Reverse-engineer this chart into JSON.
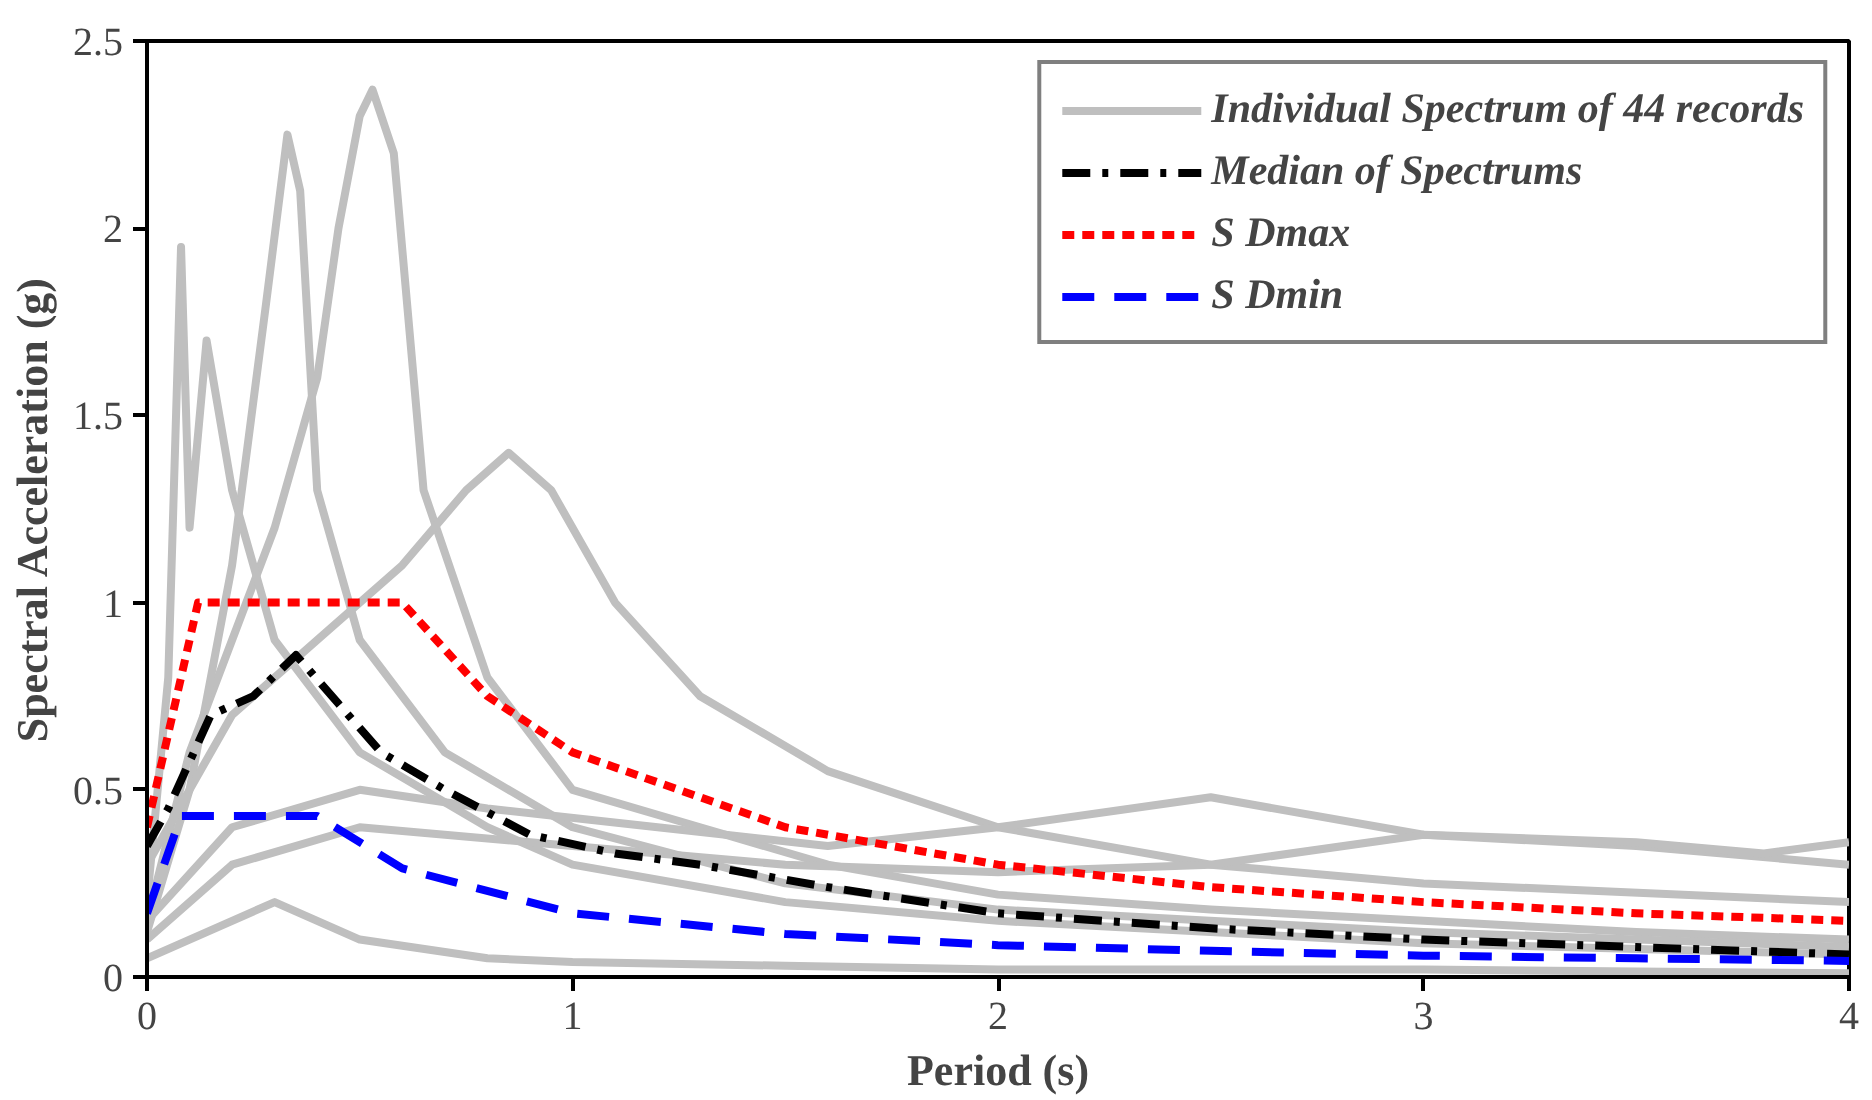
{
  "chart_data": {
    "type": "line",
    "xlabel": "Period (s)",
    "ylabel": "Spectral Acceleration (g)",
    "xlim": [
      0,
      4
    ],
    "xticks": [
      0,
      1,
      2,
      3,
      4
    ],
    "ylim": [
      0,
      2.5
    ],
    "yticks": [
      0,
      0.5,
      1,
      1.5,
      2,
      2.5
    ],
    "grid": false,
    "legend": "top right",
    "series": [
      {
        "name": "Individual Spectrum of 44 records",
        "color": "#bfbfbf",
        "line_style": "solid",
        "x": [
          0,
          0.1,
          0.2,
          0.3,
          0.4,
          0.45,
          0.5,
          0.53,
          0.58,
          0.65,
          0.8,
          1,
          1.3,
          1.6,
          2,
          2.5,
          3,
          3.5,
          4
        ],
        "values": [
          0.15,
          0.6,
          0.9,
          1.2,
          1.6,
          2.0,
          2.3,
          2.37,
          2.2,
          1.3,
          0.8,
          0.5,
          0.4,
          0.3,
          0.22,
          0.18,
          0.15,
          0.12,
          0.1
        ]
      },
      {
        "color": "#bfbfbf",
        "line_style": "solid",
        "x": [
          0,
          0.1,
          0.2,
          0.28,
          0.33,
          0.36,
          0.4,
          0.5,
          0.7,
          1,
          1.5,
          2,
          3,
          4
        ],
        "values": [
          0.12,
          0.5,
          1.1,
          1.8,
          2.25,
          2.1,
          1.3,
          0.9,
          0.6,
          0.4,
          0.25,
          0.18,
          0.12,
          0.08
        ]
      },
      {
        "color": "#bfbfbf",
        "line_style": "solid",
        "x": [
          0,
          0.05,
          0.08,
          0.1,
          0.14,
          0.2,
          0.3,
          0.5,
          0.8,
          1,
          1.5,
          2,
          3,
          4
        ],
        "values": [
          0.2,
          0.8,
          1.95,
          1.2,
          1.7,
          1.3,
          0.9,
          0.6,
          0.4,
          0.3,
          0.2,
          0.15,
          0.09,
          0.06
        ]
      },
      {
        "color": "#bfbfbf",
        "line_style": "solid",
        "x": [
          0,
          0.2,
          0.4,
          0.6,
          0.75,
          0.85,
          0.95,
          1.1,
          1.3,
          1.6,
          2,
          2.5,
          3,
          4
        ],
        "values": [
          0.3,
          0.7,
          0.9,
          1.1,
          1.3,
          1.4,
          1.3,
          1.0,
          0.75,
          0.55,
          0.4,
          0.3,
          0.25,
          0.2
        ]
      },
      {
        "color": "#bfbfbf",
        "line_style": "solid",
        "x": [
          0,
          0.2,
          0.5,
          0.8,
          1.2,
          1.6,
          2,
          2.5,
          3,
          3.5,
          4
        ],
        "values": [
          0.15,
          0.4,
          0.5,
          0.45,
          0.4,
          0.35,
          0.4,
          0.48,
          0.38,
          0.35,
          0.3
        ]
      },
      {
        "color": "#bfbfbf",
        "line_style": "solid",
        "x": [
          0,
          0.2,
          0.5,
          1,
          1.5,
          2,
          2.5,
          3,
          3.5,
          3.8,
          4
        ],
        "values": [
          0.1,
          0.3,
          0.4,
          0.35,
          0.3,
          0.28,
          0.3,
          0.38,
          0.36,
          0.33,
          0.36
        ]
      },
      {
        "color": "#bfbfbf",
        "line_style": "solid",
        "x": [
          0,
          0.1,
          0.3,
          0.5,
          0.8,
          1,
          1.5,
          2,
          3,
          4
        ],
        "values": [
          0.05,
          0.1,
          0.2,
          0.1,
          0.05,
          0.04,
          0.03,
          0.02,
          0.02,
          0.01
        ]
      },
      {
        "name": "Median of Spectrums",
        "color": "#000000",
        "line_style": "dashdot",
        "x": [
          0,
          0.05,
          0.15,
          0.25,
          0.35,
          0.45,
          0.55,
          0.7,
          0.9,
          1.1,
          1.3,
          1.6,
          2,
          2.5,
          3,
          3.5,
          4
        ],
        "values": [
          0.35,
          0.45,
          0.7,
          0.75,
          0.86,
          0.73,
          0.6,
          0.5,
          0.38,
          0.33,
          0.3,
          0.24,
          0.17,
          0.13,
          0.1,
          0.08,
          0.06
        ]
      },
      {
        "name": "S Dmax",
        "color": "#ff0000",
        "line_style": "dashed",
        "x": [
          0,
          0.12,
          0.6,
          0.8,
          1,
          1.5,
          2,
          2.5,
          3,
          3.5,
          4
        ],
        "values": [
          0.4,
          1.0,
          1.0,
          0.75,
          0.6,
          0.4,
          0.3,
          0.24,
          0.2,
          0.17,
          0.15
        ]
      },
      {
        "name": "S Dmin",
        "color": "#0000ff",
        "line_style": "longdash",
        "x": [
          0,
          0.08,
          0.4,
          0.6,
          1,
          1.5,
          2,
          2.5,
          3,
          3.5,
          4
        ],
        "values": [
          0.17,
          0.43,
          0.43,
          0.29,
          0.17,
          0.115,
          0.085,
          0.07,
          0.057,
          0.05,
          0.043
        ]
      }
    ]
  }
}
